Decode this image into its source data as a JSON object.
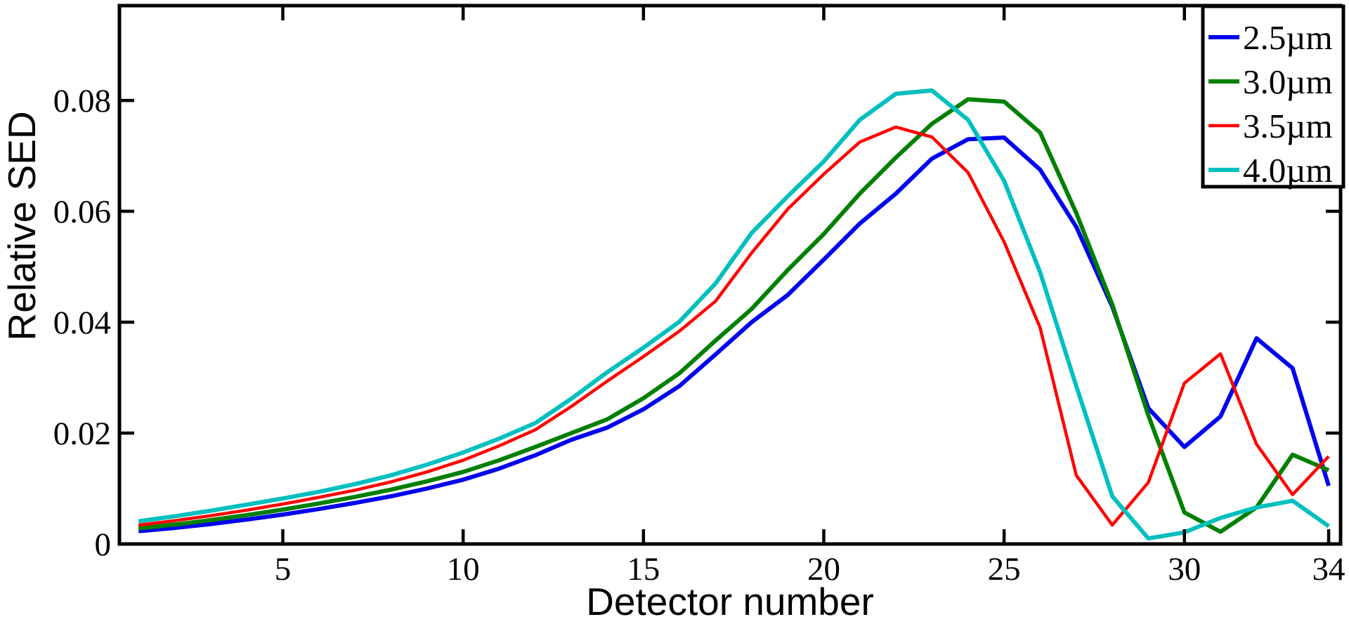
{
  "figure": {
    "background_color": "#ffffff",
    "axis_color": "#000000"
  },
  "chart_data": {
    "type": "line",
    "title": "",
    "xlabel": "Detector number",
    "ylabel": "Relative SED",
    "grid": false,
    "legend_position": "top-right",
    "xlim": [
      0.47,
      34.33
    ],
    "ylim": [
      0,
      0.0971
    ],
    "xticks": {
      "values": [
        5,
        10,
        15,
        20,
        25,
        30,
        34
      ],
      "labels": [
        "5",
        "10",
        "15",
        "20",
        "25",
        "30",
        "34"
      ]
    },
    "yticks": {
      "values": [
        0,
        0.02,
        0.04,
        0.06,
        0.08
      ],
      "labels": [
        "0",
        "0.02",
        "0.04",
        "0.06",
        "0.08"
      ]
    },
    "x": [
      1,
      2,
      3,
      4,
      5,
      6,
      7,
      8,
      9,
      10,
      11,
      12,
      13,
      14,
      15,
      16,
      17,
      18,
      19,
      20,
      21,
      22,
      23,
      24,
      25,
      26,
      27,
      28,
      29,
      30,
      31,
      32,
      33,
      34
    ],
    "series": [
      {
        "name": "2.5µm",
        "color": "#0000EE",
        "values": [
          0.0023,
          0.0029,
          0.0036,
          0.0044,
          0.0053,
          0.0063,
          0.0074,
          0.0086,
          0.01,
          0.0116,
          0.0136,
          0.016,
          0.0188,
          0.021,
          0.0243,
          0.0285,
          0.0342,
          0.04,
          0.0449,
          0.0513,
          0.0578,
          0.0632,
          0.0695,
          0.073,
          0.0733,
          0.0675,
          0.0572,
          0.0428,
          0.0245,
          0.0175,
          0.023,
          0.0371,
          0.0317,
          0.0105
        ]
      },
      {
        "name": "3.0µm",
        "color": "#008000",
        "values": [
          0.0028,
          0.0035,
          0.0043,
          0.0052,
          0.0062,
          0.0073,
          0.0085,
          0.0098,
          0.0113,
          0.013,
          0.0151,
          0.0175,
          0.02,
          0.0225,
          0.0263,
          0.0308,
          0.0367,
          0.0424,
          0.0494,
          0.0559,
          0.0632,
          0.0697,
          0.0758,
          0.0802,
          0.0798,
          0.0742,
          0.0597,
          0.0432,
          0.0232,
          0.0057,
          0.0022,
          0.0066,
          0.0161,
          0.0133
        ]
      },
      {
        "name": "3.5µm",
        "color": "#FF0000",
        "values": [
          0.0034,
          0.0042,
          0.0051,
          0.0061,
          0.0072,
          0.0084,
          0.0097,
          0.0112,
          0.013,
          0.0151,
          0.0177,
          0.0206,
          0.0248,
          0.0294,
          0.0338,
          0.0384,
          0.0438,
          0.0525,
          0.0604,
          0.0667,
          0.0725,
          0.0752,
          0.0734,
          0.067,
          0.0545,
          0.039,
          0.0124,
          0.0034,
          0.0111,
          0.029,
          0.0343,
          0.018,
          0.0089,
          0.0158
        ]
      },
      {
        "name": "4.0µm",
        "color": "#00BFBF",
        "values": [
          0.0041,
          0.005,
          0.006,
          0.0071,
          0.0082,
          0.0094,
          0.0108,
          0.0124,
          0.0143,
          0.0165,
          0.019,
          0.0218,
          0.0262,
          0.031,
          0.0354,
          0.0401,
          0.047,
          0.0561,
          0.0627,
          0.069,
          0.0765,
          0.0812,
          0.0818,
          0.0765,
          0.0655,
          0.049,
          0.0285,
          0.0086,
          0.001,
          0.0021,
          0.0047,
          0.0066,
          0.0078,
          0.0032
        ]
      }
    ]
  }
}
